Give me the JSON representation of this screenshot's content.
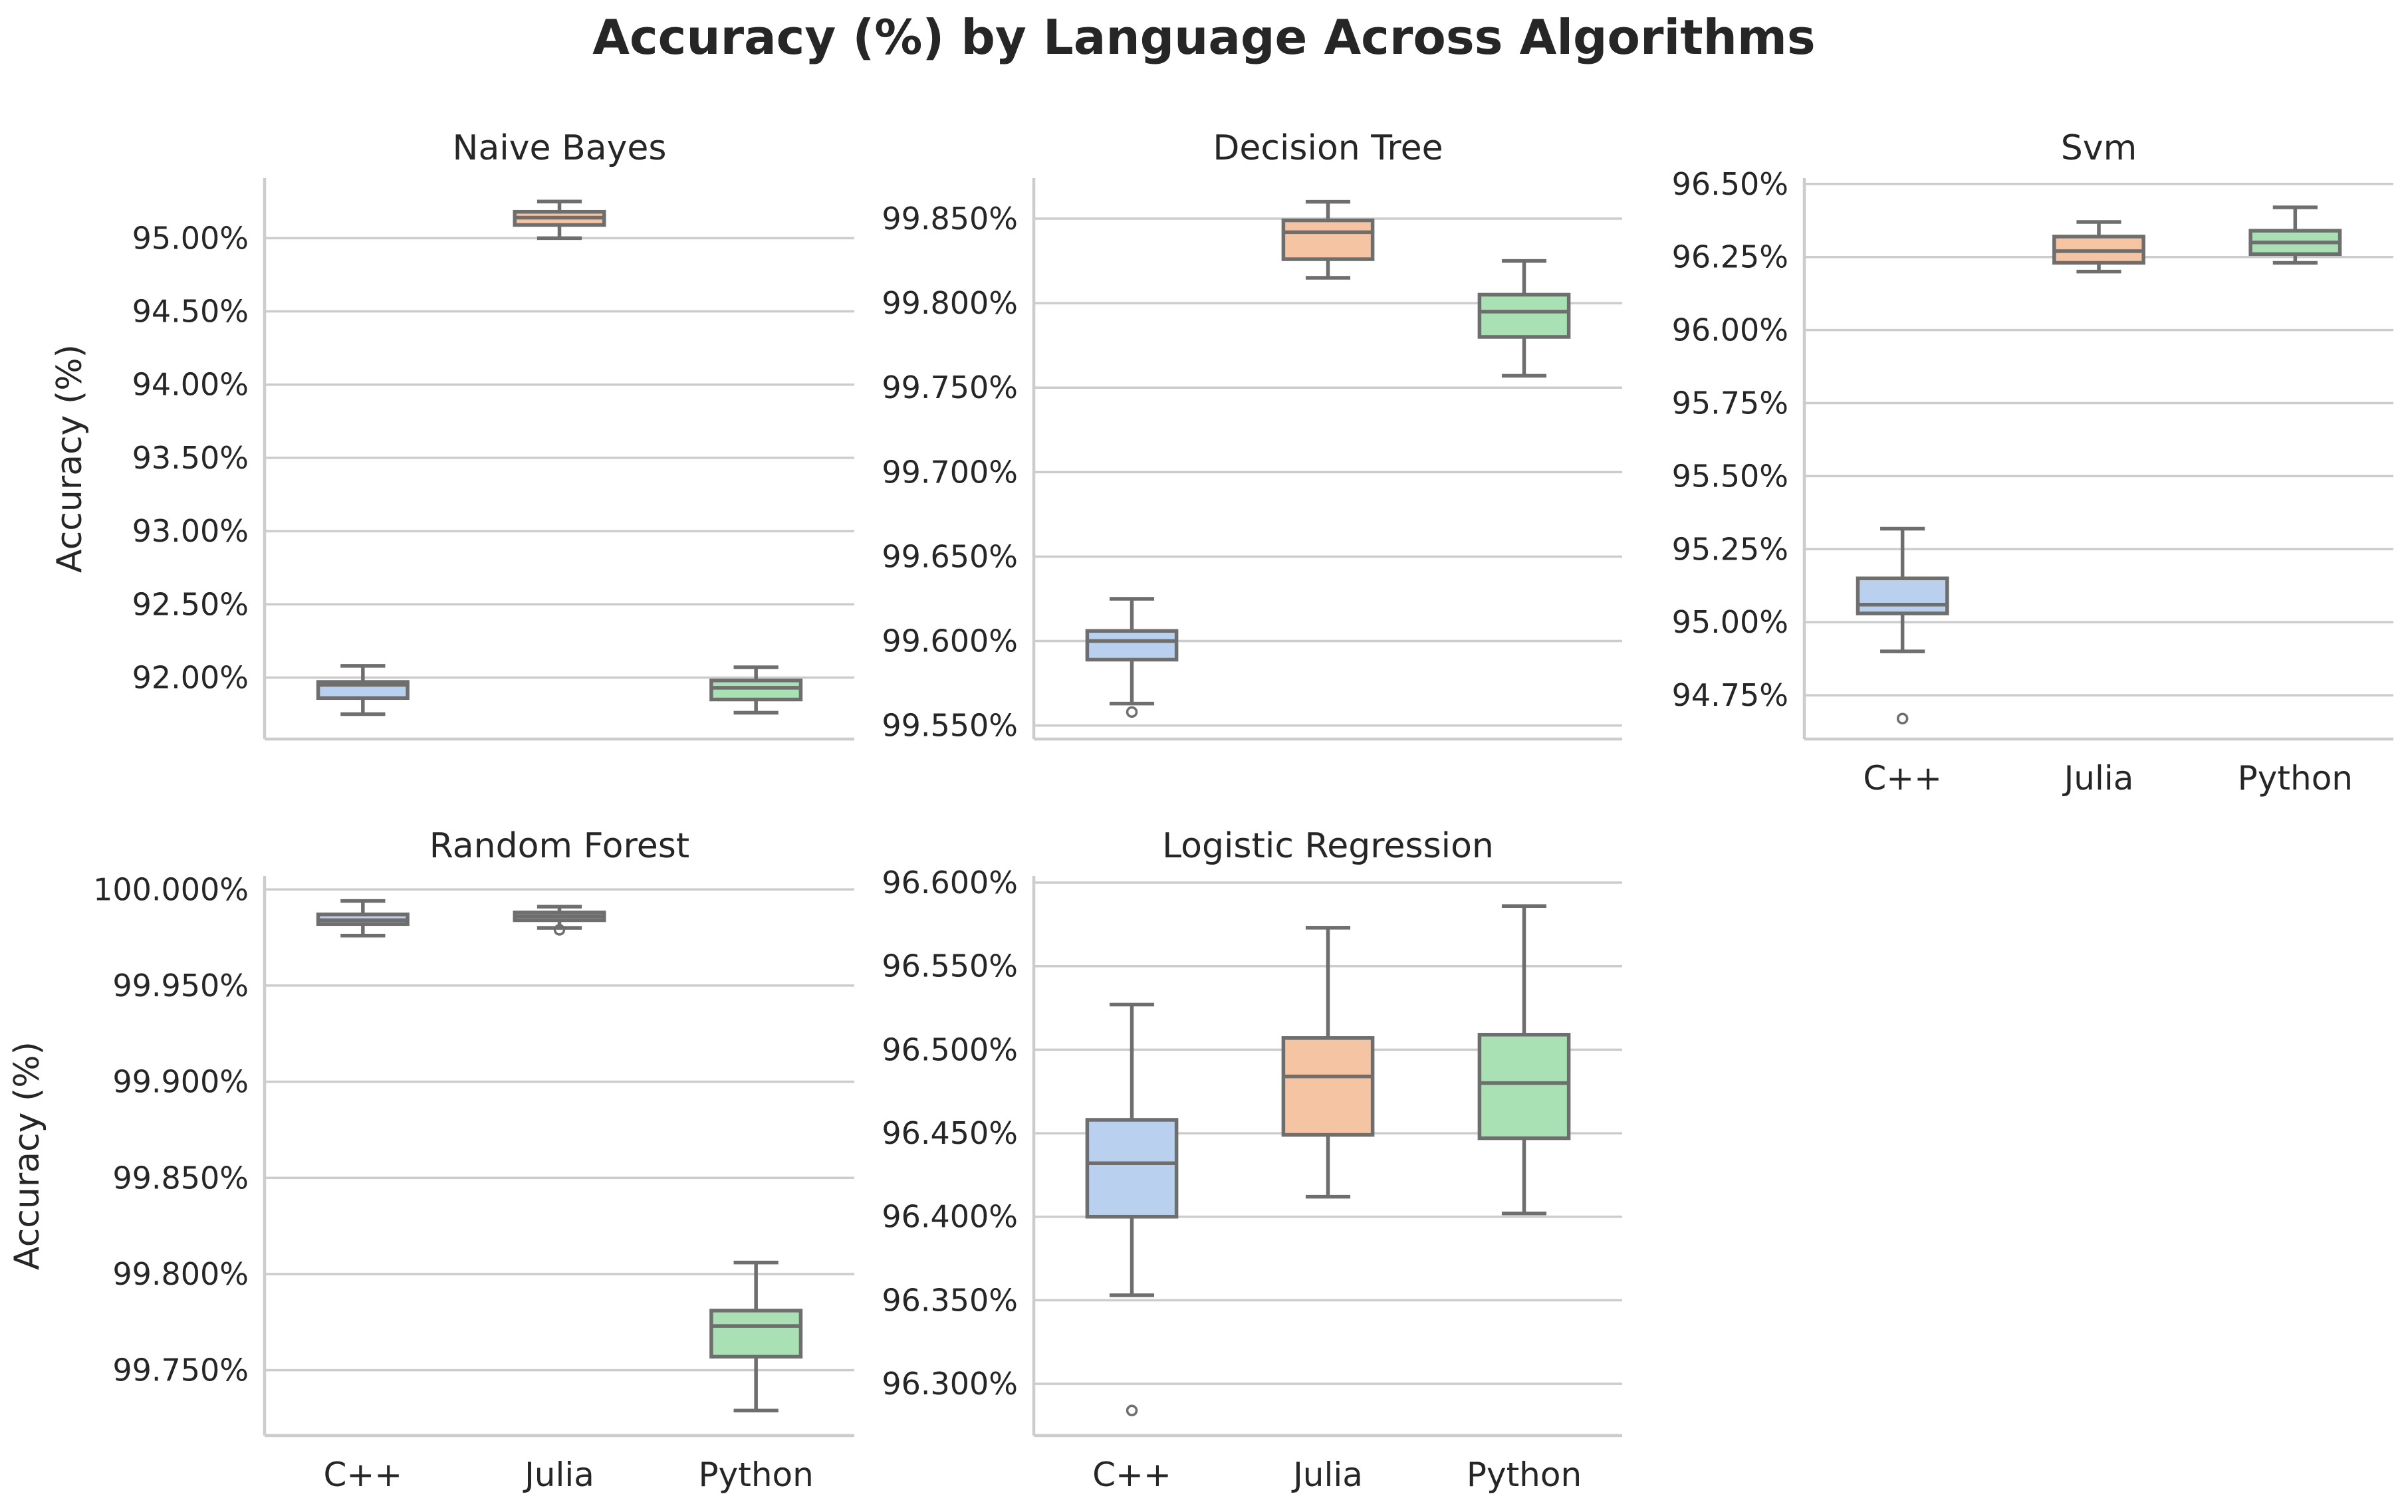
{
  "title": "Accuracy (%) by Language Across Algorithms",
  "colors": {
    "C++": "#b9d0ee",
    "Julia": "#f5c4a3",
    "Python": "#a9e0b4",
    "grid": "#cccccc",
    "spine": "#cccccc",
    "box_edge": "#6e6e6e"
  },
  "chart_data": [
    {
      "type": "box",
      "title": "Naive Bayes",
      "ylabel": "Accuracy (%)",
      "xlabel": "",
      "categories": [
        "C++",
        "Julia",
        "Python"
      ],
      "ylim": [
        91.58,
        95.41
      ],
      "yticks": [
        92.0,
        92.5,
        93.0,
        93.5,
        94.0,
        94.5,
        95.0
      ],
      "ytick_labels": [
        "92.00%",
        "92.50%",
        "93.00%",
        "93.50%",
        "94.00%",
        "94.50%",
        "95.00%"
      ],
      "show_xticks": false,
      "boxes": [
        {
          "category": "C++",
          "whisker_low": 91.75,
          "q1": 91.86,
          "median": 91.95,
          "q3": 91.97,
          "whisker_high": 92.08,
          "outliers": []
        },
        {
          "category": "Julia",
          "whisker_low": 95.0,
          "q1": 95.09,
          "median": 95.14,
          "q3": 95.18,
          "whisker_high": 95.25,
          "outliers": []
        },
        {
          "category": "Python",
          "whisker_low": 91.76,
          "q1": 91.85,
          "median": 91.93,
          "q3": 91.98,
          "whisker_high": 92.07,
          "outliers": []
        }
      ]
    },
    {
      "type": "box",
      "title": "Decision Tree",
      "ylabel": "",
      "xlabel": "",
      "categories": [
        "C++",
        "Julia",
        "Python"
      ],
      "ylim": [
        99.542,
        99.874
      ],
      "yticks": [
        99.55,
        99.6,
        99.65,
        99.7,
        99.75,
        99.8,
        99.85
      ],
      "ytick_labels": [
        "99.550%",
        "99.600%",
        "99.650%",
        "99.700%",
        "99.750%",
        "99.800%",
        "99.850%"
      ],
      "show_xticks": false,
      "boxes": [
        {
          "category": "C++",
          "whisker_low": 99.563,
          "q1": 99.589,
          "median": 99.6,
          "q3": 99.606,
          "whisker_high": 99.625,
          "outliers": [
            99.558
          ]
        },
        {
          "category": "Julia",
          "whisker_low": 99.815,
          "q1": 99.826,
          "median": 99.842,
          "q3": 99.849,
          "whisker_high": 99.86,
          "outliers": []
        },
        {
          "category": "Python",
          "whisker_low": 99.757,
          "q1": 99.78,
          "median": 99.795,
          "q3": 99.805,
          "whisker_high": 99.825,
          "outliers": []
        }
      ]
    },
    {
      "type": "box",
      "title": "Svm",
      "ylabel": "",
      "xlabel": "",
      "categories": [
        "C++",
        "Julia",
        "Python"
      ],
      "ylim": [
        94.6,
        96.52
      ],
      "yticks": [
        94.75,
        95.0,
        95.25,
        95.5,
        95.75,
        96.0,
        96.25,
        96.5
      ],
      "ytick_labels": [
        "94.75%",
        "95.00%",
        "95.25%",
        "95.50%",
        "95.75%",
        "96.00%",
        "96.25%",
        "96.50%"
      ],
      "show_xticks": true,
      "boxes": [
        {
          "category": "C++",
          "whisker_low": 94.9,
          "q1": 95.03,
          "median": 95.06,
          "q3": 95.15,
          "whisker_high": 95.32,
          "outliers": [
            94.67
          ]
        },
        {
          "category": "Julia",
          "whisker_low": 96.2,
          "q1": 96.23,
          "median": 96.27,
          "q3": 96.32,
          "whisker_high": 96.37,
          "outliers": []
        },
        {
          "category": "Python",
          "whisker_low": 96.23,
          "q1": 96.26,
          "median": 96.3,
          "q3": 96.34,
          "whisker_high": 96.42,
          "outliers": []
        }
      ]
    },
    {
      "type": "box",
      "title": "Random Forest",
      "ylabel": "Accuracy (%)",
      "xlabel": "",
      "categories": [
        "C++",
        "Julia",
        "Python"
      ],
      "ylim": [
        99.716,
        100.007
      ],
      "yticks": [
        99.75,
        99.8,
        99.85,
        99.9,
        99.95,
        100.0
      ],
      "ytick_labels": [
        "99.750%",
        "99.800%",
        "99.850%",
        "99.900%",
        "99.950%",
        "100.000%"
      ],
      "show_xticks": true,
      "boxes": [
        {
          "category": "C++",
          "whisker_low": 99.976,
          "q1": 99.982,
          "median": 99.984,
          "q3": 99.987,
          "whisker_high": 99.994,
          "outliers": []
        },
        {
          "category": "Julia",
          "whisker_low": 99.98,
          "q1": 99.984,
          "median": 99.986,
          "q3": 99.988,
          "whisker_high": 99.991,
          "outliers": [
            99.979
          ]
        },
        {
          "category": "Python",
          "whisker_low": 99.729,
          "q1": 99.757,
          "median": 99.773,
          "q3": 99.781,
          "whisker_high": 99.806,
          "outliers": []
        }
      ]
    },
    {
      "type": "box",
      "title": "Logistic Regression",
      "ylabel": "",
      "xlabel": "",
      "categories": [
        "C++",
        "Julia",
        "Python"
      ],
      "ylim": [
        96.269,
        96.604
      ],
      "yticks": [
        96.3,
        96.35,
        96.4,
        96.45,
        96.5,
        96.55,
        96.6
      ],
      "ytick_labels": [
        "96.300%",
        "96.350%",
        "96.400%",
        "96.450%",
        "96.500%",
        "96.550%",
        "96.600%"
      ],
      "show_xticks": true,
      "boxes": [
        {
          "category": "C++",
          "whisker_low": 96.353,
          "q1": 96.4,
          "median": 96.432,
          "q3": 96.458,
          "whisker_high": 96.527,
          "outliers": [
            96.284
          ]
        },
        {
          "category": "Julia",
          "whisker_low": 96.412,
          "q1": 96.449,
          "median": 96.484,
          "q3": 96.507,
          "whisker_high": 96.573,
          "outliers": []
        },
        {
          "category": "Python",
          "whisker_low": 96.402,
          "q1": 96.447,
          "median": 96.48,
          "q3": 96.509,
          "whisker_high": 96.586,
          "outliers": []
        }
      ]
    }
  ]
}
